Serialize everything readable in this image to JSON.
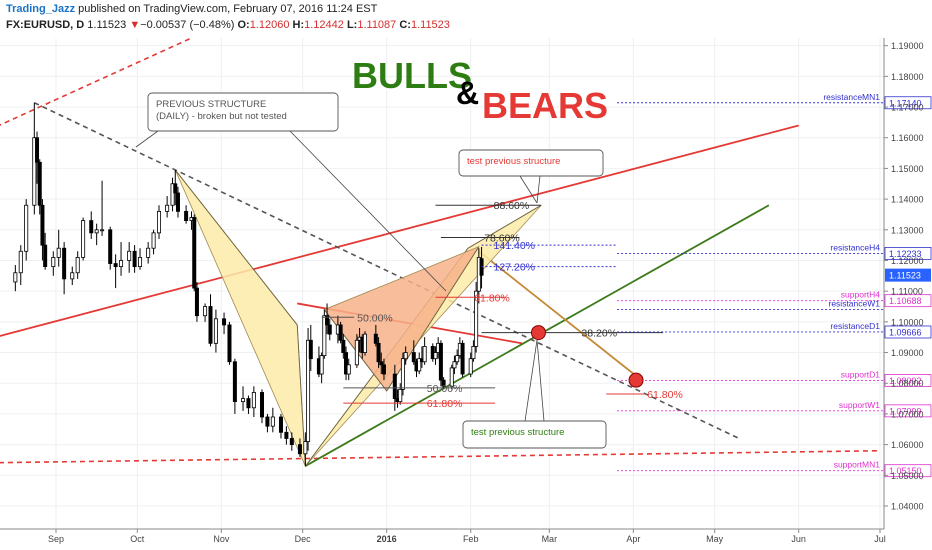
{
  "header": {
    "author": "Trading_Jazz",
    "published": " published on TradingView.com, February 07, 2016 11:24 EST",
    "symbol": "FX:EURUSD, D",
    "last": "1.11523",
    "change_arrow": "▼",
    "change": "−0.00537 (−0.48%)",
    "ohlc_o_label": "O:",
    "ohlc_o": "1.12060",
    "ohlc_h_label": "H:",
    "ohlc_h": "1.12442",
    "ohlc_l_label": "L:",
    "ohlc_l": "1.11087",
    "ohlc_c_label": "C:",
    "ohlc_c": "1.11523"
  },
  "title": {
    "bulls": "BULLS",
    "amp": "&",
    "bears": "BEARS"
  },
  "colors": {
    "bulls": "#2e7d12",
    "bears": "#e53935",
    "amp": "#000000",
    "red_line": "#e53935",
    "green_line": "#3d7a1a",
    "dashed_grey": "#555555",
    "blue_level": "#3030d0",
    "magenta_level": "#e030d0",
    "pattern_yellow": "#fdeba8",
    "pattern_orange": "#f7b28a",
    "candle": "#000000",
    "red_dot": "#e53935",
    "price_tag": "#2962ff"
  },
  "chart_data": {
    "type": "candlestick",
    "symbol": "FX:EURUSD",
    "interval": "D",
    "x_axis": {
      "ticks": [
        {
          "label": "Sep",
          "date": "2015-09-01"
        },
        {
          "label": "Oct",
          "date": "2015-10-01"
        },
        {
          "label": "Nov",
          "date": "2015-11-01"
        },
        {
          "label": "Dec",
          "date": "2015-12-01"
        },
        {
          "label": "2016",
          "date": "2016-01-01",
          "bold": true
        },
        {
          "label": "Feb",
          "date": "2016-02-01"
        },
        {
          "label": "Mar",
          "date": "2016-03-01"
        },
        {
          "label": "Apr",
          "date": "2016-04-01"
        },
        {
          "label": "May",
          "date": "2016-05-01"
        },
        {
          "label": "Jun",
          "date": "2016-06-01"
        },
        {
          "label": "Jul",
          "date": "2016-07-01"
        }
      ]
    },
    "y_axis": {
      "range": [
        1.0325,
        1.1925
      ],
      "ticks": [
        "1.04000",
        "1.05000",
        "1.06000",
        "1.07000",
        "1.08000",
        "1.09000",
        "1.10000",
        "1.11000",
        "1.12000",
        "1.13000",
        "1.14000",
        "1.15000",
        "1.16000",
        "1.17000",
        "1.18000",
        "1.19000"
      ]
    },
    "candles": [
      [
        "2015-08-17",
        1.113,
        1.1185,
        1.11,
        1.116
      ],
      [
        "2015-08-19",
        1.116,
        1.125,
        1.112,
        1.123
      ],
      [
        "2015-08-21",
        1.123,
        1.14,
        1.12,
        1.138
      ],
      [
        "2015-08-24",
        1.138,
        1.1714,
        1.135,
        1.16
      ],
      [
        "2015-08-25",
        1.16,
        1.162,
        1.145,
        1.152
      ],
      [
        "2015-08-26",
        1.152,
        1.153,
        1.135,
        1.138
      ],
      [
        "2015-08-27",
        1.138,
        1.14,
        1.12,
        1.125
      ],
      [
        "2015-08-28",
        1.125,
        1.129,
        1.117,
        1.118
      ],
      [
        "2015-08-31",
        1.118,
        1.123,
        1.115,
        1.121
      ],
      [
        "2015-09-02",
        1.121,
        1.13,
        1.118,
        1.124
      ],
      [
        "2015-09-04",
        1.124,
        1.126,
        1.109,
        1.114
      ],
      [
        "2015-09-07",
        1.114,
        1.118,
        1.112,
        1.116
      ],
      [
        "2015-09-09",
        1.116,
        1.123,
        1.114,
        1.121
      ],
      [
        "2015-09-11",
        1.121,
        1.134,
        1.12,
        1.133
      ],
      [
        "2015-09-14",
        1.133,
        1.136,
        1.127,
        1.129
      ],
      [
        "2015-09-16",
        1.129,
        1.132,
        1.125,
        1.13
      ],
      [
        "2015-09-18",
        1.13,
        1.146,
        1.128,
        1.13
      ],
      [
        "2015-09-21",
        1.13,
        1.131,
        1.117,
        1.119
      ],
      [
        "2015-09-23",
        1.119,
        1.122,
        1.111,
        1.118
      ],
      [
        "2015-09-25",
        1.118,
        1.126,
        1.115,
        1.12
      ],
      [
        "2015-09-28",
        1.12,
        1.126,
        1.116,
        1.123
      ],
      [
        "2015-09-30",
        1.123,
        1.125,
        1.116,
        1.118
      ],
      [
        "2015-10-02",
        1.118,
        1.124,
        1.117,
        1.121
      ],
      [
        "2015-10-05",
        1.121,
        1.126,
        1.119,
        1.124
      ],
      [
        "2015-10-07",
        1.124,
        1.13,
        1.122,
        1.129
      ],
      [
        "2015-10-09",
        1.129,
        1.138,
        1.127,
        1.136
      ],
      [
        "2015-10-12",
        1.136,
        1.141,
        1.134,
        1.138
      ],
      [
        "2015-10-14",
        1.138,
        1.147,
        1.136,
        1.145
      ],
      [
        "2015-10-15",
        1.145,
        1.1495,
        1.138,
        1.142
      ],
      [
        "2015-10-16",
        1.142,
        1.144,
        1.134,
        1.136
      ],
      [
        "2015-10-19",
        1.136,
        1.138,
        1.132,
        1.133
      ],
      [
        "2015-10-21",
        1.133,
        1.136,
        1.13,
        1.134
      ],
      [
        "2015-10-22",
        1.134,
        1.135,
        1.11,
        1.111
      ],
      [
        "2015-10-23",
        1.111,
        1.113,
        1.1,
        1.102
      ],
      [
        "2015-10-26",
        1.102,
        1.106,
        1.1,
        1.105
      ],
      [
        "2015-10-28",
        1.105,
        1.109,
        1.092,
        1.093
      ],
      [
        "2015-10-30",
        1.093,
        1.104,
        1.09,
        1.101
      ],
      [
        "2015-11-02",
        1.101,
        1.103,
        1.096,
        1.099
      ],
      [
        "2015-11-04",
        1.099,
        1.1,
        1.086,
        1.087
      ],
      [
        "2015-11-06",
        1.087,
        1.088,
        1.07,
        1.074
      ],
      [
        "2015-11-09",
        1.074,
        1.079,
        1.071,
        1.075
      ],
      [
        "2015-11-11",
        1.075,
        1.076,
        1.07,
        1.072
      ],
      [
        "2015-11-13",
        1.072,
        1.079,
        1.069,
        1.077
      ],
      [
        "2015-11-16",
        1.077,
        1.078,
        1.067,
        1.069
      ],
      [
        "2015-11-18",
        1.069,
        1.07,
        1.064,
        1.066
      ],
      [
        "2015-11-20",
        1.066,
        1.072,
        1.064,
        1.069
      ],
      [
        "2015-11-23",
        1.069,
        1.07,
        1.062,
        1.064
      ],
      [
        "2015-11-25",
        1.064,
        1.066,
        1.06,
        1.062
      ],
      [
        "2015-11-27",
        1.062,
        1.064,
        1.058,
        1.06
      ],
      [
        "2015-11-30",
        1.06,
        1.062,
        1.056,
        1.057
      ],
      [
        "2015-12-02",
        1.057,
        1.064,
        1.053,
        1.061
      ],
      [
        "2015-12-03",
        1.061,
        1.098,
        1.058,
        1.094
      ],
      [
        "2015-12-04",
        1.094,
        1.099,
        1.084,
        1.088
      ],
      [
        "2015-12-07",
        1.088,
        1.092,
        1.082,
        1.083
      ],
      [
        "2015-12-08",
        1.083,
        1.09,
        1.08,
        1.089
      ],
      [
        "2015-12-09",
        1.089,
        1.104,
        1.088,
        1.102
      ],
      [
        "2015-12-10",
        1.102,
        1.106,
        1.096,
        1.099
      ],
      [
        "2015-12-11",
        1.099,
        1.101,
        1.094,
        1.096
      ],
      [
        "2015-12-14",
        1.096,
        1.102,
        1.093,
        1.099
      ],
      [
        "2015-12-15",
        1.099,
        1.1,
        1.093,
        1.094
      ],
      [
        "2015-12-16",
        1.094,
        1.096,
        1.088,
        1.09
      ],
      [
        "2015-12-17",
        1.09,
        1.092,
        1.081,
        1.083
      ],
      [
        "2015-12-18",
        1.083,
        1.088,
        1.081,
        1.086
      ],
      [
        "2015-12-21",
        1.086,
        1.096,
        1.085,
        1.094
      ],
      [
        "2015-12-22",
        1.094,
        1.098,
        1.09,
        1.095
      ],
      [
        "2015-12-23",
        1.095,
        1.096,
        1.088,
        1.09
      ],
      [
        "2015-12-24",
        1.09,
        1.097,
        1.089,
        1.096
      ],
      [
        "2015-12-28",
        1.096,
        1.099,
        1.092,
        1.093
      ],
      [
        "2015-12-29",
        1.093,
        1.095,
        1.085,
        1.087
      ],
      [
        "2015-12-30",
        1.087,
        1.09,
        1.083,
        1.086
      ],
      [
        "2015-12-31",
        1.086,
        1.088,
        1.081,
        1.083
      ],
      [
        "2016-01-04",
        1.083,
        1.086,
        1.071,
        1.075
      ],
      [
        "2016-01-05",
        1.075,
        1.078,
        1.072,
        1.074
      ],
      [
        "2016-01-06",
        1.074,
        1.08,
        1.073,
        1.078
      ],
      [
        "2016-01-07",
        1.078,
        1.09,
        1.076,
        1.088
      ],
      [
        "2016-01-08",
        1.088,
        1.092,
        1.086,
        1.09
      ],
      [
        "2016-01-11",
        1.09,
        1.094,
        1.086,
        1.087
      ],
      [
        "2016-01-12",
        1.087,
        1.088,
        1.082,
        1.084
      ],
      [
        "2016-01-13",
        1.084,
        1.09,
        1.083,
        1.088
      ],
      [
        "2016-01-14",
        1.088,
        1.092,
        1.085,
        1.087
      ],
      [
        "2016-01-15",
        1.087,
        1.095,
        1.086,
        1.092
      ],
      [
        "2016-01-18",
        1.092,
        1.093,
        1.087,
        1.088
      ],
      [
        "2016-01-19",
        1.088,
        1.092,
        1.086,
        1.09
      ],
      [
        "2016-01-20",
        1.09,
        1.095,
        1.088,
        1.093
      ],
      [
        "2016-01-21",
        1.093,
        1.094,
        1.079,
        1.081
      ],
      [
        "2016-01-22",
        1.081,
        1.082,
        1.078,
        1.079
      ],
      [
        "2016-01-25",
        1.079,
        1.086,
        1.078,
        1.085
      ],
      [
        "2016-01-26",
        1.085,
        1.089,
        1.083,
        1.087
      ],
      [
        "2016-01-27",
        1.087,
        1.091,
        1.086,
        1.089
      ],
      [
        "2016-01-28",
        1.089,
        1.095,
        1.088,
        1.093
      ],
      [
        "2016-01-29",
        1.093,
        1.094,
        1.082,
        1.083
      ],
      [
        "2016-02-01",
        1.083,
        1.09,
        1.082,
        1.088
      ],
      [
        "2016-02-02",
        1.088,
        1.094,
        1.087,
        1.092
      ],
      [
        "2016-02-03",
        1.092,
        1.113,
        1.09,
        1.11
      ],
      [
        "2016-02-04",
        1.11,
        1.124,
        1.106,
        1.121
      ],
      [
        "2016-02-05",
        1.1206,
        1.1244,
        1.1109,
        1.1152
      ]
    ],
    "harmonic_patterns": [
      {
        "fill": "pattern_yellow",
        "points": [
          [
            "2015-10-15",
            1.1495
          ],
          [
            "2015-11-29",
            1.099
          ],
          [
            "2015-12-02",
            1.053
          ],
          [
            "2016-01-31",
            1.124
          ],
          [
            "2016-02-27",
            1.138
          ]
        ]
      },
      {
        "fill": "pattern_orange",
        "points": [
          [
            "2015-12-09",
            1.104
          ],
          [
            "2016-01-01",
            1.0775
          ],
          [
            "2016-02-04",
            1.1245
          ]
        ]
      }
    ],
    "trendlines": [
      {
        "color": "red_line",
        "style": "solid",
        "points": [
          [
            "2015-08-01",
            1.093
          ],
          [
            "2016-06-01",
            1.164
          ]
        ]
      },
      {
        "color": "red_line",
        "style": "solid",
        "points": [
          [
            "2015-11-29",
            1.106
          ],
          [
            "2016-02-20",
            1.093
          ]
        ]
      },
      {
        "color": "red_line",
        "style": "dashed",
        "points": [
          [
            "2015-08-01",
            1.16
          ],
          [
            "2015-10-21",
            1.1925
          ]
        ]
      },
      {
        "color": "red_line",
        "style": "dashed",
        "points": [
          [
            "2015-08-01",
            1.054
          ],
          [
            "2016-07-01",
            1.058
          ]
        ]
      },
      {
        "color": "green_line",
        "style": "solid",
        "points": [
          [
            "2015-12-02",
            1.053
          ],
          [
            "2016-05-21",
            1.138
          ]
        ]
      },
      {
        "color": "dashed_grey",
        "style": "dashed",
        "points": [
          [
            "2015-08-24",
            1.1714
          ],
          [
            "2016-05-10",
            1.062
          ]
        ]
      },
      {
        "color": "#c58a35",
        "style": "solid",
        "points": [
          [
            "2016-02-04",
            1.123
          ],
          [
            "2016-04-04",
            1.081
          ]
        ]
      }
    ],
    "fib_levels": [
      {
        "label": "88.60%",
        "value": 1.138,
        "from": "2016-01-19",
        "to": "2016-02-27",
        "color": "#333333"
      },
      {
        "label": "78.60%",
        "value": 1.1275,
        "from": "2016-01-21",
        "to": "2016-02-19",
        "color": "#333333"
      },
      {
        "label": "61.80%",
        "value": 1.108,
        "from": "2016-01-19",
        "to": "2016-02-14",
        "color": "#e53935"
      },
      {
        "label": "50.00%",
        "value": 1.1015,
        "from": "2015-12-08",
        "to": "2015-12-20",
        "color": "#555555"
      },
      {
        "label": "38.20%",
        "value": 1.0965,
        "from": "2016-02-05",
        "to": "2016-04-12",
        "color": "#333333"
      },
      {
        "label": "50.00%",
        "value": 1.0785,
        "from": "2015-12-16",
        "to": "2016-02-10",
        "color": "#555555"
      },
      {
        "label": "61.80%",
        "value": 1.0765,
        "from": "2016-03-22",
        "to": "2016-04-05",
        "color": "#e53935"
      },
      {
        "label": "61.80%",
        "value": 1.0735,
        "from": "2015-12-16",
        "to": "2016-02-10",
        "color": "#e53935"
      },
      {
        "label": "141.40%",
        "value": 1.125,
        "from": "2016-02-05",
        "to": "2016-03-26",
        "color": "#3030d0",
        "dashed": true
      },
      {
        "label": "127.20%",
        "value": 1.118,
        "from": "2016-02-05",
        "to": "2016-03-26",
        "color": "#3030d0",
        "dashed": true
      }
    ],
    "sr_levels": [
      {
        "label": "resistanceMN1",
        "value": 1.1714,
        "price": "1.17140",
        "color": "blue_level"
      },
      {
        "label": "resistanceH4",
        "value": 1.1223,
        "price": "1.12233",
        "color": "blue_level"
      },
      {
        "label": "supportH4",
        "value": 1.1069,
        "price": "1.10688",
        "color": "magenta_level"
      },
      {
        "label": "resistanceW1",
        "value": 1.104,
        "price": "",
        "color": "blue_level"
      },
      {
        "label": "resistanceD1",
        "value": 1.0967,
        "price": "1.09666",
        "color": "blue_level"
      },
      {
        "label": "supportD1",
        "value": 1.0809,
        "price": "1.08092",
        "color": "magenta_level"
      },
      {
        "label": "supportW1",
        "value": 1.071,
        "price": "1.07099",
        "color": "magenta_level"
      },
      {
        "label": "supportMN1",
        "value": 1.0515,
        "price": "1.05150",
        "color": "magenta_level"
      }
    ],
    "last_price_tag": "1.11523",
    "red_dots": [
      [
        "2016-02-26",
        1.0965
      ],
      [
        "2016-04-02",
        1.081
      ]
    ],
    "annotations": [
      {
        "lines": [
          "PREVIOUS STRUCTURE",
          "(DAILY) - broken but not tested"
        ],
        "color": "#555555"
      },
      {
        "lines": [
          "test previous structure"
        ],
        "color": "#e53935"
      },
      {
        "lines": [
          "test previous structure"
        ],
        "color": "#2e7d12"
      }
    ]
  }
}
